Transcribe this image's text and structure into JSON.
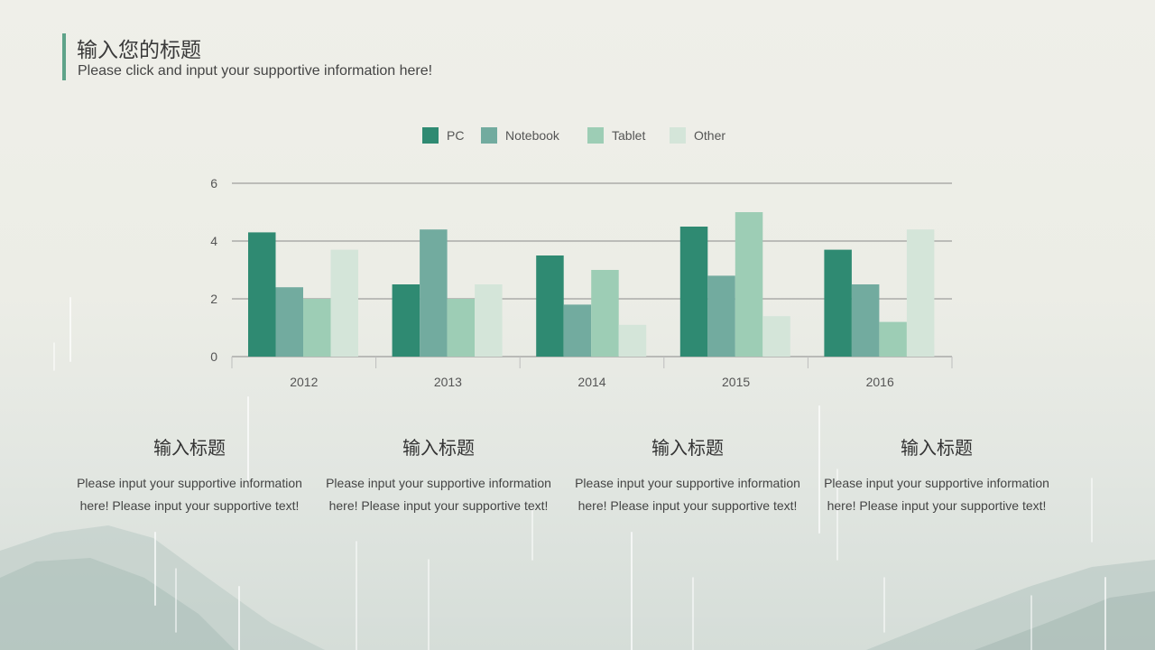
{
  "header": {
    "title": "输入您的标题",
    "subtitle": "Please click and input your supportive information here!"
  },
  "colors": {
    "accent": "#5ea389",
    "series": [
      "#2f8a72",
      "#72ab9f",
      "#9dcdb5",
      "#d4e5d9"
    ],
    "grid": "#8a8a8a"
  },
  "chart_data": {
    "type": "bar",
    "categories": [
      "2012",
      "2013",
      "2014",
      "2015",
      "2016"
    ],
    "series": [
      {
        "name": "PC",
        "values": [
          4.3,
          2.5,
          3.5,
          4.5,
          3.7
        ]
      },
      {
        "name": "Notebook",
        "values": [
          2.4,
          4.4,
          1.8,
          2.8,
          2.5
        ]
      },
      {
        "name": "Tablet",
        "values": [
          2.0,
          2.0,
          3.0,
          5.0,
          1.2
        ]
      },
      {
        "name": "Other",
        "values": [
          3.7,
          2.5,
          1.1,
          1.4,
          4.4
        ]
      }
    ],
    "ylim": [
      0,
      6
    ],
    "yticks": [
      "0",
      "2",
      "4",
      "6"
    ],
    "grid": true,
    "legend_position": "top-center",
    "title": "",
    "xlabel": "",
    "ylabel": ""
  },
  "columns": [
    {
      "title": "输入标题",
      "text": "Please input your supportive information here!  Please input your supportive text!"
    },
    {
      "title": "输入标题",
      "text": "Please input your supportive information here!  Please input your supportive text!"
    },
    {
      "title": "输入标题",
      "text": "Please input your supportive information here!  Please input your supportive text!"
    },
    {
      "title": "输入标题",
      "text": "Please input your supportive information here!  Please input your supportive text!"
    }
  ]
}
